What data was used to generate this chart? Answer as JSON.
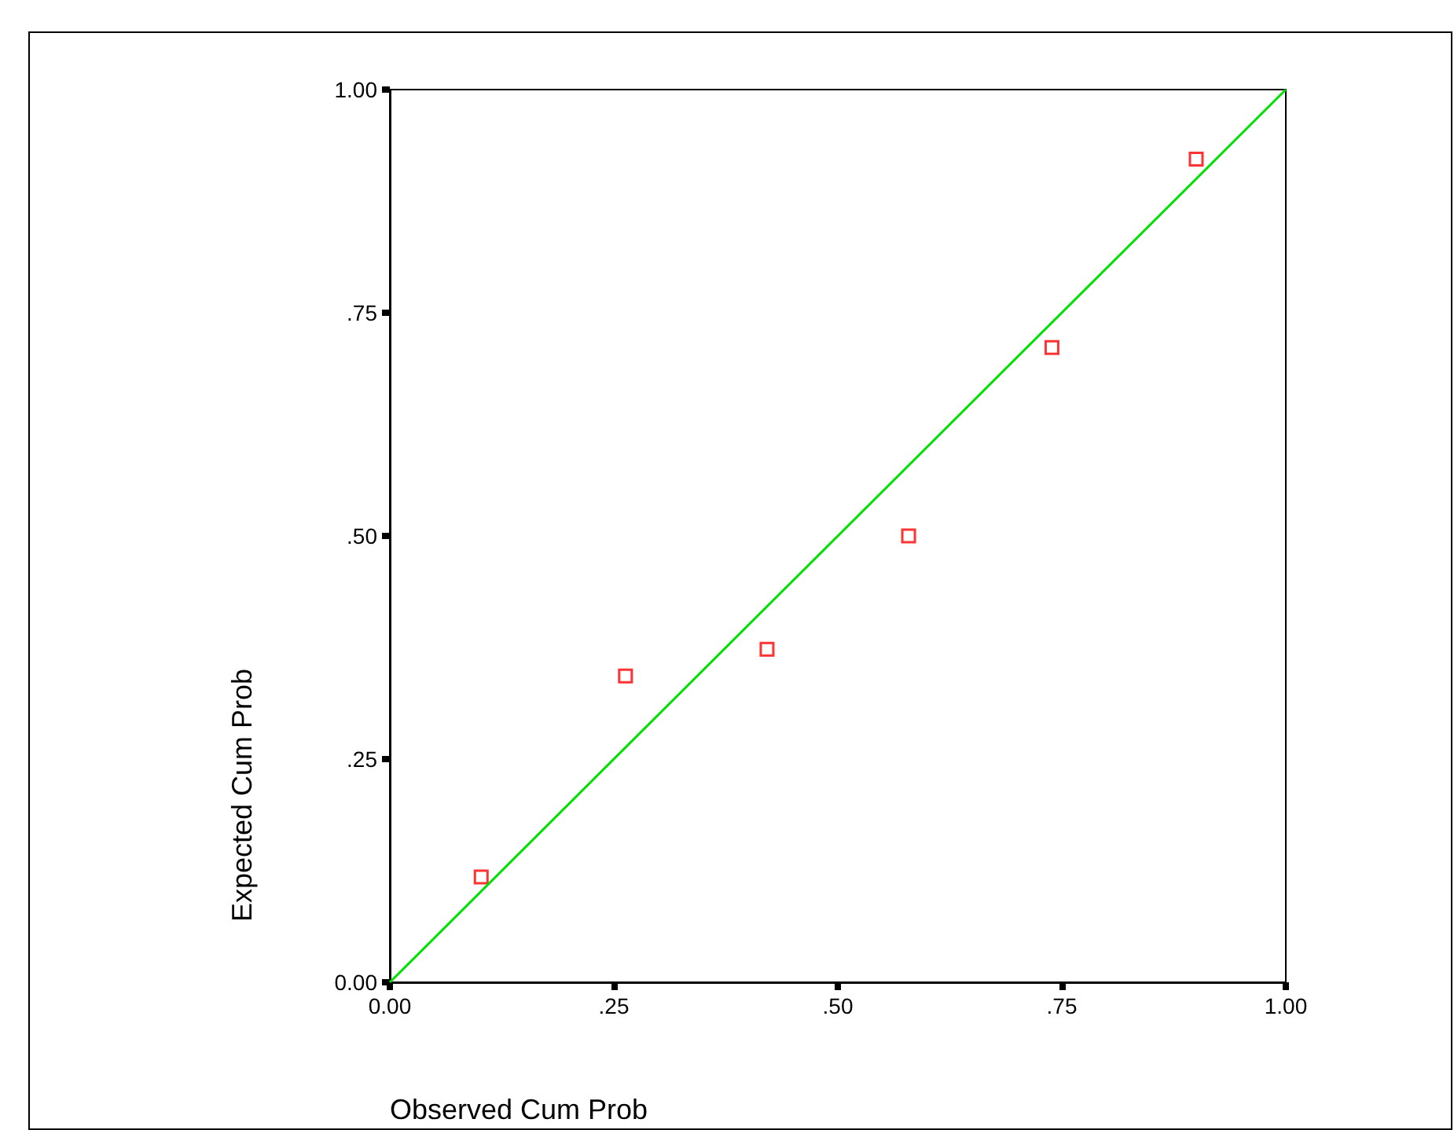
{
  "chart_data": {
    "type": "scatter",
    "xlabel": "Observed Cum Prob",
    "ylabel": "Expected Cum Prob",
    "series": [
      {
        "type": "scatter",
        "color": "#ff0000",
        "marker": "square",
        "x": [
          0.102,
          0.263,
          0.421,
          0.579,
          0.739,
          0.9
        ],
        "values": [
          0.118,
          0.343,
          0.373,
          0.5,
          0.711,
          0.922
        ]
      },
      {
        "type": "line",
        "color": "#00e000",
        "marker": "none",
        "x": [
          0,
          1
        ],
        "values": [
          0,
          1
        ]
      }
    ],
    "xlim": [
      0,
      1
    ],
    "ylim": [
      0,
      1
    ],
    "xticks": [
      {
        "value": 0,
        "label": "0.00"
      },
      {
        "value": 0.25,
        "label": ".25"
      },
      {
        "value": 0.5,
        "label": ".50"
      },
      {
        "value": 0.75,
        "label": ".75"
      },
      {
        "value": 1,
        "label": "1.00"
      }
    ],
    "yticks": [
      {
        "value": 0,
        "label": "0.00"
      },
      {
        "value": 0.25,
        "label": ".25"
      },
      {
        "value": 0.5,
        "label": ".50"
      },
      {
        "value": 0.75,
        "label": ".75"
      },
      {
        "value": 1,
        "label": "1.00"
      }
    ],
    "grid": false
  }
}
